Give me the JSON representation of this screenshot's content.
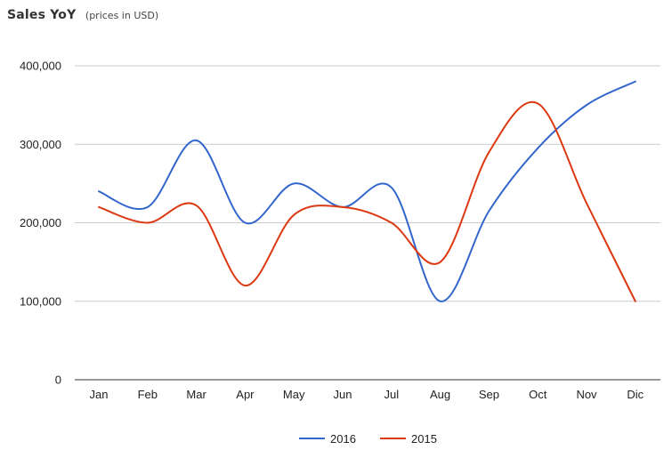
{
  "chart_data": {
    "type": "line",
    "title": "Sales YoY",
    "subtitle": "(prices in USD)",
    "categories": [
      "Jan",
      "Feb",
      "Mar",
      "Apr",
      "May",
      "Jun",
      "Jul",
      "Aug",
      "Sep",
      "Oct",
      "Nov",
      "Dic"
    ],
    "series": [
      {
        "name": "2016",
        "color": "#3366cc",
        "values": [
          240000,
          220000,
          305000,
          200000,
          250000,
          220000,
          245000,
          100000,
          215000,
          295000,
          350000,
          380000
        ]
      },
      {
        "name": "2015",
        "color": "#dc3912",
        "values": [
          220000,
          200000,
          222000,
          120000,
          210000,
          220000,
          200000,
          150000,
          290000,
          352000,
          225000,
          100000
        ]
      }
    ],
    "ylim": [
      0,
      400000
    ],
    "yticks": [
      0,
      100000,
      200000,
      300000,
      400000
    ],
    "ytick_labels": [
      "0",
      "100,000",
      "200,000",
      "300,000",
      "400,000"
    ],
    "grid": true,
    "legend_position": "bottom",
    "smooth": true
  }
}
